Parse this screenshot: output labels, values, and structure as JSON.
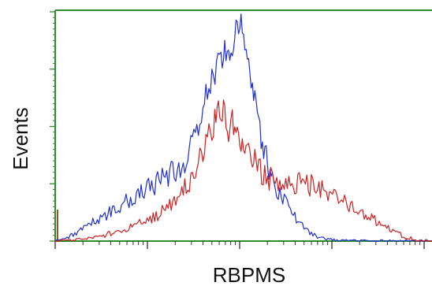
{
  "chart_data": {
    "type": "line",
    "title": "",
    "xlabel": "RBPMS",
    "ylabel": "Events",
    "xlim": [
      0,
      100
    ],
    "ylim": [
      0,
      100
    ],
    "grid": false,
    "legend": "none",
    "frame_color": "#2e8b2e",
    "series": [
      {
        "color": "#1f2fd0",
        "x": [
          0,
          2,
          4,
          6,
          8,
          10,
          12,
          14,
          16,
          18,
          20,
          22,
          24,
          26,
          28,
          30,
          32,
          34,
          36,
          38,
          40,
          42,
          44,
          45,
          46,
          47,
          48,
          49,
          50,
          51,
          52,
          53,
          54,
          55,
          56,
          57,
          58,
          60,
          62,
          64,
          66,
          68,
          70,
          72,
          74,
          76,
          78,
          80,
          84,
          88,
          92,
          96,
          100
        ],
        "y": [
          0,
          1,
          2,
          4,
          6,
          8,
          10,
          12,
          14,
          16,
          18,
          20,
          22,
          24,
          26,
          28,
          30,
          34,
          40,
          50,
          62,
          72,
          80,
          82,
          78,
          86,
          92,
          96,
          88,
          80,
          72,
          62,
          52,
          42,
          36,
          30,
          26,
          20,
          14,
          10,
          6,
          3,
          1.5,
          0.8,
          0.4,
          0.2,
          0.1,
          0,
          0,
          0,
          0,
          0,
          0
        ]
      },
      {
        "color": "#cf1f1f",
        "x": [
          0,
          4,
          8,
          12,
          16,
          20,
          24,
          28,
          32,
          36,
          38,
          40,
          42,
          43,
          44,
          45,
          46,
          47,
          48,
          49,
          50,
          51,
          52,
          53,
          54,
          56,
          58,
          60,
          62,
          64,
          66,
          68,
          70,
          72,
          74,
          76,
          78,
          80,
          82,
          84,
          86,
          88,
          90,
          92,
          94,
          96,
          98,
          100
        ],
        "y": [
          0,
          0.5,
          1,
          2,
          4,
          6,
          9,
          12,
          18,
          26,
          34,
          42,
          50,
          56,
          58,
          54,
          48,
          52,
          46,
          40,
          44,
          38,
          36,
          34,
          32,
          28,
          26,
          24,
          24,
          26,
          24,
          24,
          22,
          22,
          20,
          18,
          16,
          14,
          12,
          10,
          8,
          6,
          4,
          2.5,
          1.5,
          0.6,
          0.2,
          0
        ]
      }
    ]
  }
}
